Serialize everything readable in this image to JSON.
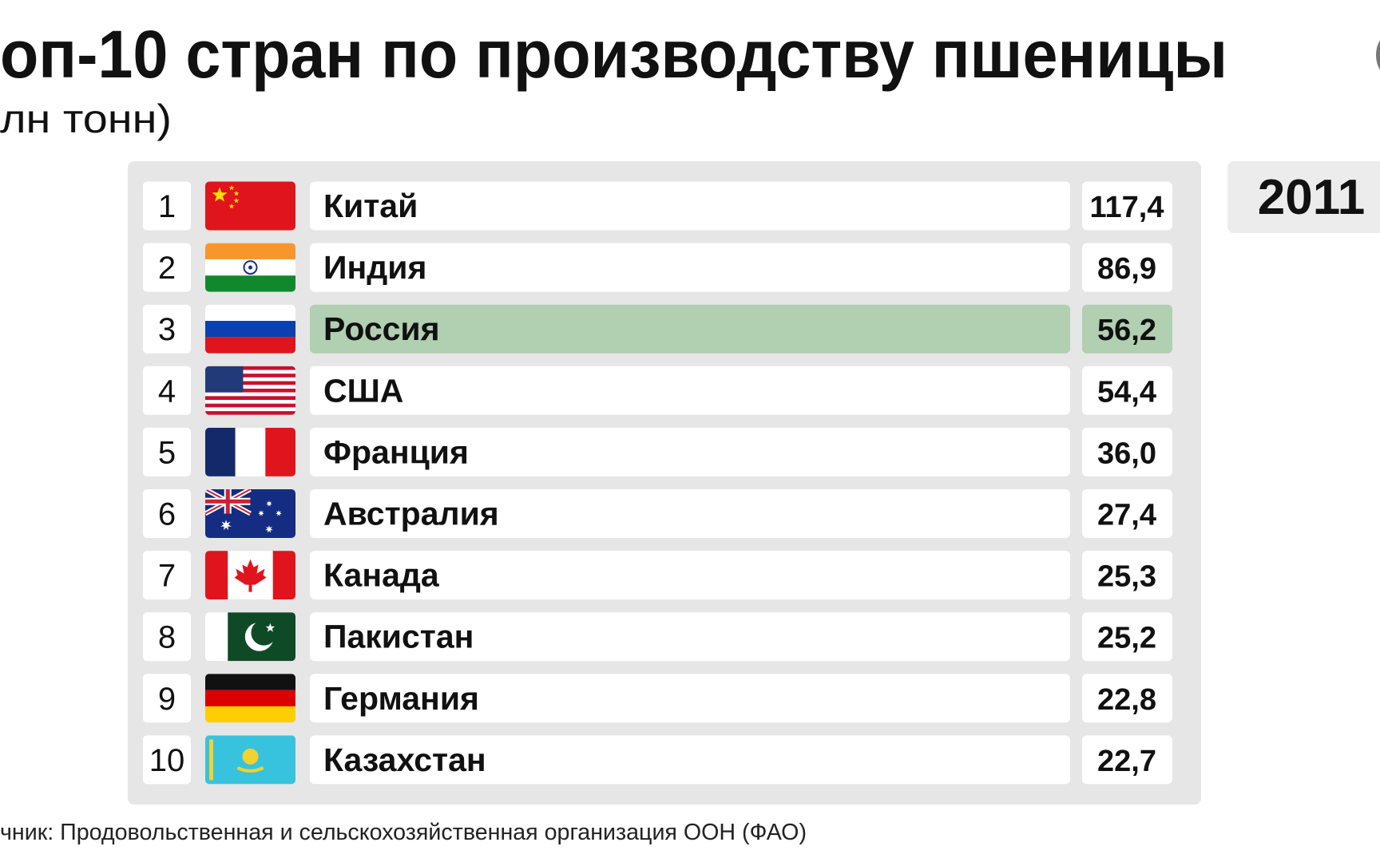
{
  "header": {
    "title": "оп-10 стран по производству пшеницы",
    "subtitle": "лн тонн)"
  },
  "year": "2011",
  "table": {
    "rows": [
      {
        "rank": "1",
        "country": "Китай",
        "value": "117,4"
      },
      {
        "rank": "2",
        "country": "Индия",
        "value": "86,9"
      },
      {
        "rank": "3",
        "country": "Россия",
        "value": "56,2",
        "highlight": true
      },
      {
        "rank": "4",
        "country": "США",
        "value": "54,4"
      },
      {
        "rank": "5",
        "country": "Франция",
        "value": "36,0"
      },
      {
        "rank": "6",
        "country": "Австралия",
        "value": "27,4"
      },
      {
        "rank": "7",
        "country": "Канада",
        "value": "25,3"
      },
      {
        "rank": "8",
        "country": "Пакистан",
        "value": "25,2"
      },
      {
        "rank": "9",
        "country": "Германия",
        "value": "22,8"
      },
      {
        "rank": "10",
        "country": "Казахстан",
        "value": "22,7"
      }
    ]
  },
  "source": "чник: Продовольственная и сельскохозяйственная организация ООН (ФАО)"
}
